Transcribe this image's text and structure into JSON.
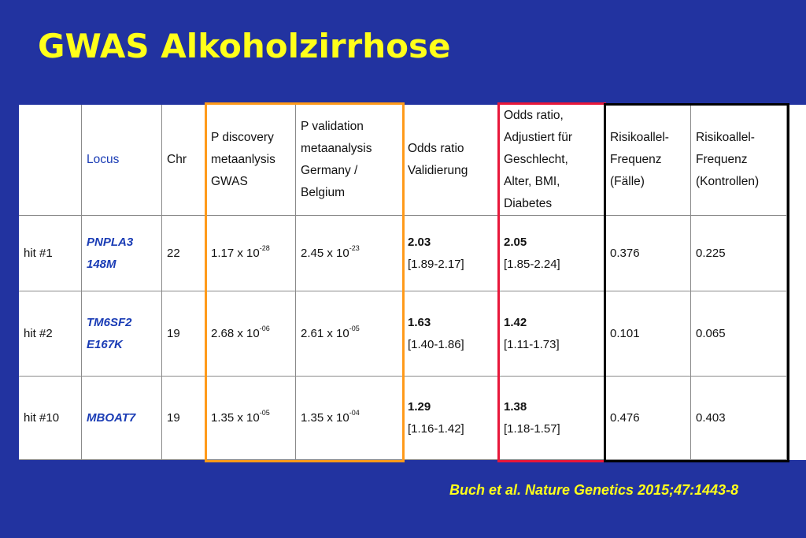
{
  "title": "GWAS Alkoholzirrhose",
  "citation": "Buch et al. Nature Genetics 2015;47:1443-8",
  "colors": {
    "background": "#2233a0",
    "title": "#ffff1a",
    "locus": "#1a3cb5",
    "highlight_p": "#ff9a1a",
    "highlight_adjusted": "#e8173a",
    "highlight_freq": "#000000"
  },
  "table": {
    "headers": {
      "row_label": "",
      "locus": "Locus",
      "chr": "Chr",
      "p_discovery": [
        "P discovery",
        "metaanlysis",
        "GWAS"
      ],
      "p_validation": [
        "P validation",
        "metaanalysis",
        "Germany /",
        "Belgium"
      ],
      "odds_ratio": [
        "Odds ratio",
        "Validierung"
      ],
      "odds_adjusted": [
        "Odds ratio,",
        "Adjustiert für",
        "Geschlecht,",
        "Alter, BMI,",
        "Diabetes"
      ],
      "freq_cases": [
        "Risikoallel-",
        "Frequenz",
        "(Fälle)"
      ],
      "freq_controls": [
        "Risikoallel-",
        "Frequenz",
        "(Kontrollen)"
      ]
    },
    "rows": [
      {
        "hit": "hit #1",
        "locus": [
          "PNPLA3",
          "148M"
        ],
        "chr": "22",
        "p_discovery": {
          "base": "1.17 x 10",
          "exp": "-28"
        },
        "p_validation": {
          "base": "2.45 x 10",
          "exp": "-23"
        },
        "or": "2.03",
        "or_ci": "[1.89-2.17]",
        "or_adj": "2.05",
        "or_adj_ci": "[1.85-2.24]",
        "freq_cases": "0.376",
        "freq_controls": "0.225"
      },
      {
        "hit": "hit #2",
        "locus": [
          "TM6SF2",
          "E167K"
        ],
        "chr": "19",
        "p_discovery": {
          "base": "2.68 x 10",
          "exp": "-06"
        },
        "p_validation": {
          "base": "2.61 x 10",
          "exp": "-05"
        },
        "or": "1.63",
        "or_ci": "[1.40-1.86]",
        "or_adj": "1.42",
        "or_adj_ci": "[1.11-1.73]",
        "freq_cases": "0.101",
        "freq_controls": "0.065"
      },
      {
        "hit": "hit #10",
        "locus": [
          "MBOAT7"
        ],
        "chr": "19",
        "p_discovery": {
          "base": "1.35 x 10",
          "exp": "-05"
        },
        "p_validation": {
          "base": "1.35 x 10",
          "exp": "-04"
        },
        "or": "1.29",
        "or_ci": "[1.16-1.42]",
        "or_adj": "1.38",
        "or_adj_ci": "[1.18-1.57]",
        "freq_cases": "0.476",
        "freq_controls": "0.403"
      }
    ]
  }
}
